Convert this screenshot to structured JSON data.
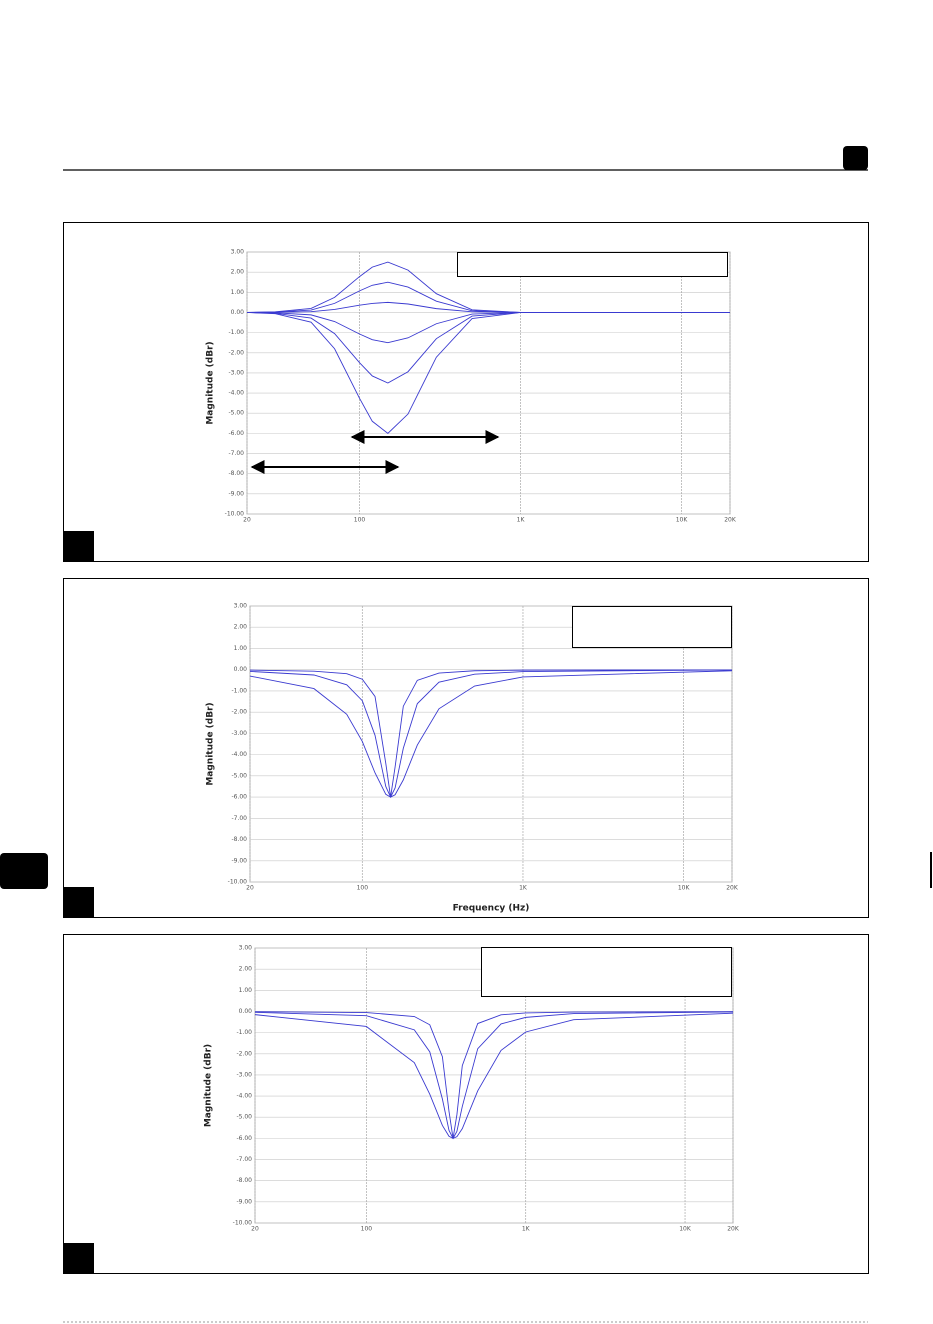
{
  "chart_data": [
    {
      "type": "line",
      "log_x": true,
      "grid": true,
      "y_label": "Magnitude (dBr)",
      "xlim": [
        20,
        20000
      ],
      "xticks": [
        20,
        100,
        {
          "value": 1000,
          "label": "1K"
        },
        {
          "value": 10000,
          "label": "10K"
        },
        {
          "value": 20000,
          "label": "20K"
        }
      ],
      "ylim": [
        -10,
        3
      ],
      "yticks": [
        {
          "value": 3,
          "label": "3.00"
        },
        {
          "value": 2,
          "label": "2.00"
        },
        {
          "value": 1,
          "label": "1.00"
        },
        {
          "value": 0,
          "label": "0.00"
        },
        {
          "value": -1,
          "label": "-1.00"
        },
        {
          "value": -2,
          "label": "-2.00"
        },
        {
          "value": -3,
          "label": "-3.00"
        },
        {
          "value": -4,
          "label": "-4.00"
        },
        {
          "value": -5,
          "label": "-5.00"
        },
        {
          "value": -6,
          "label": "-6.00"
        },
        {
          "value": -7,
          "label": "-7.00"
        },
        {
          "value": -8,
          "label": "-8.00"
        },
        {
          "value": -9,
          "label": "-9.00"
        },
        {
          "value": -10,
          "label": "-10.00"
        }
      ],
      "x": [
        20,
        30,
        50,
        70,
        100,
        120,
        150,
        200,
        300,
        500,
        1000,
        2000,
        5000,
        20000
      ],
      "series": [
        {
          "color": "#3a3ad0",
          "values": [
            0,
            0.03,
            0.2,
            0.75,
            1.78,
            2.25,
            2.5,
            2.1,
            0.93,
            0.13,
            0,
            0,
            0,
            0
          ]
        },
        {
          "color": "#3a3ad0",
          "values": [
            0,
            0.02,
            0.12,
            0.45,
            1.07,
            1.35,
            1.5,
            1.26,
            0.56,
            0.08,
            0,
            0,
            0,
            0
          ]
        },
        {
          "color": "#3a3ad0",
          "values": [
            0,
            0.01,
            0.04,
            0.15,
            0.36,
            0.45,
            0.5,
            0.42,
            0.19,
            0.03,
            0,
            0,
            0,
            0
          ]
        },
        {
          "color": "#3a3ad0",
          "values": [
            0,
            -0.02,
            -0.12,
            -0.45,
            -1.07,
            -1.35,
            -1.5,
            -1.26,
            -0.56,
            -0.08,
            0,
            0,
            0,
            0
          ]
        },
        {
          "color": "#3a3ad0",
          "values": [
            0,
            -0.04,
            -0.28,
            -1.05,
            -2.49,
            -3.15,
            -3.5,
            -2.94,
            -1.3,
            -0.18,
            0,
            0,
            0,
            0
          ]
        },
        {
          "color": "#3a3ad0",
          "values": [
            0,
            -0.06,
            -0.48,
            -1.8,
            -4.26,
            -5.4,
            -6,
            -5.04,
            -2.22,
            -0.3,
            0,
            0,
            0,
            0
          ]
        }
      ]
    },
    {
      "type": "line",
      "log_x": true,
      "grid": true,
      "y_label": "Magnitude (dBr)",
      "x_label": "Frequency (Hz)",
      "xlim": [
        20,
        20000
      ],
      "xticks": [
        20,
        100,
        {
          "value": 1000,
          "label": "1K"
        },
        {
          "value": 10000,
          "label": "10K"
        },
        {
          "value": 20000,
          "label": "20K"
        }
      ],
      "ylim": [
        -10,
        3
      ],
      "yticks": [
        {
          "value": 3,
          "label": "3.00"
        },
        {
          "value": 2,
          "label": "2.00"
        },
        {
          "value": 1,
          "label": "1.00"
        },
        {
          "value": 0,
          "label": "0.00"
        },
        {
          "value": -1,
          "label": "-1.00"
        },
        {
          "value": -2,
          "label": "-2.00"
        },
        {
          "value": -3,
          "label": "-3.00"
        },
        {
          "value": -4,
          "label": "-4.00"
        },
        {
          "value": -5,
          "label": "-5.00"
        },
        {
          "value": -6,
          "label": "-6.00"
        },
        {
          "value": -7,
          "label": "-7.00"
        },
        {
          "value": -8,
          "label": "-8.00"
        },
        {
          "value": -9,
          "label": "-9.00"
        },
        {
          "value": -10,
          "label": "-10.00"
        }
      ],
      "x": [
        20,
        50,
        80,
        100,
        120,
        140,
        150,
        160,
        180,
        220,
        300,
        500,
        1000,
        20000
      ],
      "series": [
        {
          "color": "#3a3ad0",
          "values": [
            -0.02,
            -0.07,
            -0.19,
            -0.45,
            -1.26,
            -4.41,
            -6,
            -4.58,
            -1.72,
            -0.5,
            -0.16,
            -0.05,
            -0.02,
            -0.01
          ]
        },
        {
          "color": "#3a3ad0",
          "values": [
            -0.08,
            -0.25,
            -0.71,
            -1.46,
            -3.09,
            -5.5,
            -6,
            -5.57,
            -3.7,
            -1.6,
            -0.59,
            -0.21,
            -0.09,
            -0.01
          ]
        },
        {
          "color": "#3a3ad0",
          "values": [
            -0.3,
            -0.89,
            -2.1,
            -3.38,
            -4.86,
            -5.87,
            -6,
            -5.89,
            -5.19,
            -3.55,
            -1.84,
            -0.77,
            -0.34,
            -0.05
          ]
        }
      ]
    },
    {
      "type": "line",
      "log_x": true,
      "grid": true,
      "y_label": "Magnitude (dBr)",
      "xlim": [
        20,
        20000
      ],
      "xticks": [
        20,
        100,
        {
          "value": 1000,
          "label": "1K"
        },
        {
          "value": 10000,
          "label": "10K"
        },
        {
          "value": 20000,
          "label": "20K"
        }
      ],
      "ylim": [
        -10,
        3
      ],
      "yticks": [
        {
          "value": 3,
          "label": "3.00"
        },
        {
          "value": 2,
          "label": "2.00"
        },
        {
          "value": 1,
          "label": "1.00"
        },
        {
          "value": 0,
          "label": "0.00"
        },
        {
          "value": -1,
          "label": "-1.00"
        },
        {
          "value": -2,
          "label": "-2.00"
        },
        {
          "value": -3,
          "label": "-3.00"
        },
        {
          "value": -4,
          "label": "-4.00"
        },
        {
          "value": -5,
          "label": "-5.00"
        },
        {
          "value": -6,
          "label": "-6.00"
        },
        {
          "value": -7,
          "label": "-7.00"
        },
        {
          "value": -8,
          "label": "-8.00"
        },
        {
          "value": -9,
          "label": "-9.00"
        },
        {
          "value": -10,
          "label": "-10.00"
        }
      ],
      "x": [
        20,
        100,
        200,
        250,
        300,
        330,
        350,
        370,
        400,
        500,
        700,
        1000,
        2000,
        20000
      ],
      "series": [
        {
          "color": "#3a3ad0",
          "values": [
            -0.01,
            -0.05,
            -0.24,
            -0.63,
            -2.14,
            -4.72,
            -6,
            -4.88,
            -2.56,
            -0.57,
            -0.16,
            -0.07,
            -0.03,
            -0.01
          ]
        },
        {
          "color": "#3a3ad0",
          "values": [
            -0.04,
            -0.2,
            -0.87,
            -1.91,
            -4.14,
            -5.62,
            -6,
            -5.67,
            -4.49,
            -1.76,
            -0.59,
            -0.28,
            -0.1,
            -0.02
          ]
        },
        {
          "color": "#3a3ad0",
          "values": [
            -0.15,
            -0.71,
            -2.42,
            -3.91,
            -5.39,
            -5.9,
            -6,
            -5.92,
            -5.54,
            -3.75,
            -1.84,
            -0.97,
            -0.39,
            -0.08
          ]
        }
      ]
    }
  ]
}
